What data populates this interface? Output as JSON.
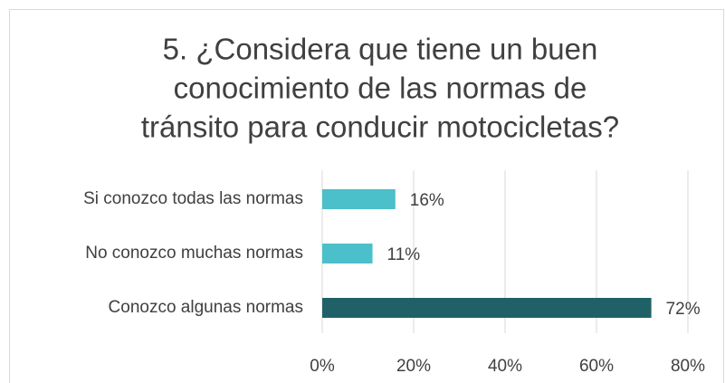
{
  "chart_data": {
    "type": "barh",
    "title": [
      "5. ¿Considera que tiene un buen",
      "conocimiento de las normas de",
      "tránsito para conducir motocicletas?"
    ],
    "categories": [
      "Si conozco todas las normas",
      "No conozco muchas normas",
      "Conozco algunas normas"
    ],
    "values": [
      16,
      11,
      72
    ],
    "value_labels": [
      "16%",
      "11%",
      "72%"
    ],
    "colors": [
      "#4bbfca",
      "#4bbfca",
      "#1f6166"
    ],
    "xlim": [
      0,
      80
    ],
    "xticks": [
      {
        "value": 0,
        "label": "0%"
      },
      {
        "value": 20,
        "label": "20%"
      },
      {
        "value": 40,
        "label": "40%"
      },
      {
        "value": 60,
        "label": "60%"
      },
      {
        "value": 80,
        "label": "80%"
      }
    ],
    "grid": true
  }
}
